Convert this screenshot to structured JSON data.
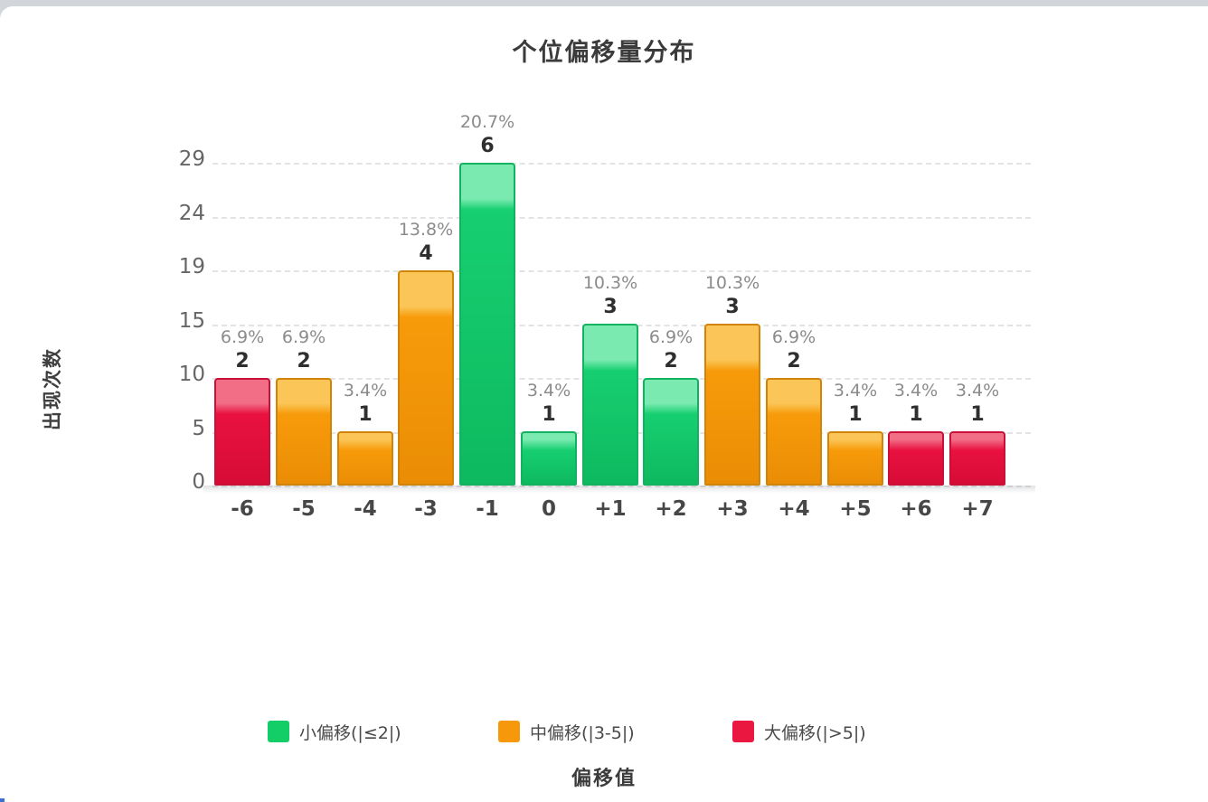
{
  "chart_data": {
    "type": "bar",
    "title": "个位偏移量分布",
    "xlabel": "偏移值",
    "ylabel": "出现次数",
    "categories": [
      "-6",
      "-5",
      "-4",
      "-3",
      "-1",
      "0",
      "+1",
      "+2",
      "+3",
      "+4",
      "+5",
      "+6",
      "+7"
    ],
    "values": [
      2,
      2,
      1,
      4,
      6,
      1,
      3,
      2,
      3,
      2,
      1,
      1,
      1
    ],
    "percent_labels": [
      "6.9%",
      "6.9%",
      "3.4%",
      "13.8%",
      "20.7%",
      "3.4%",
      "10.3%",
      "6.9%",
      "10.3%",
      "6.9%",
      "3.4%",
      "3.4%",
      "3.4%"
    ],
    "bar_groups": [
      "large",
      "mid",
      "mid",
      "mid",
      "small",
      "small",
      "small",
      "small",
      "mid",
      "mid",
      "mid",
      "large",
      "large"
    ],
    "y_ticks": [
      "0",
      "5",
      "10",
      "15",
      "19",
      "24",
      "29"
    ],
    "ylim": [
      0,
      29
    ],
    "value_axis_max_count": 6,
    "grid": "horizontal-dashed",
    "legend_position": "bottom",
    "legend": [
      {
        "label": "小偏移(|≤2|)",
        "group": "small",
        "color": "#13ce66"
      },
      {
        "label": "中偏移(|3-5|)",
        "group": "mid",
        "color": "#f7980a"
      },
      {
        "label": "大偏移(|>5|)",
        "group": "large",
        "color": "#ea1741"
      }
    ],
    "group_styles": {
      "small": {
        "main": "#16cf70",
        "light": "#7aeab0",
        "dark": "#0eb95f",
        "border": "#12b261"
      },
      "mid": {
        "main": "#f79b0a",
        "light": "#fbc557",
        "dark": "#ea8d05",
        "border": "#d08409"
      },
      "large": {
        "main": "#e91140",
        "light": "#f26d86",
        "dark": "#d60c36",
        "border": "#c81038"
      }
    },
    "colors": {
      "grid": "#e3e3e3",
      "tick_text": "#666666",
      "category_text": "#474747",
      "value_text": "#2f2f2f",
      "percent_text": "#8b8b8b",
      "title_text": "#3b3b3b"
    }
  },
  "page": {
    "top_strip_color": "#d2d5da",
    "card_color": "#ffffff",
    "corner_accent_color": "#3a6fd8"
  }
}
